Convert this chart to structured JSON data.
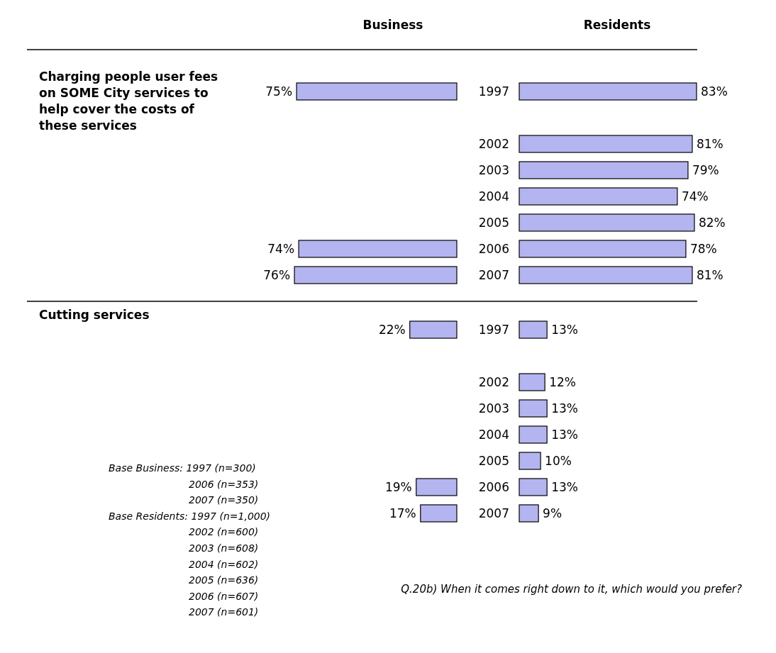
{
  "chart_data": [
    {
      "type": "bar",
      "orientation": "horizontal",
      "title": "Business",
      "ylabel": "Charging people user fees on SOME City services to help cover the costs of these services",
      "categories": [
        "1997",
        null,
        "2002",
        "2003",
        "2004",
        "2005",
        "2006",
        "2007"
      ],
      "values": [
        75,
        null,
        null,
        null,
        null,
        null,
        74,
        76
      ],
      "value_labels": [
        "75%",
        null,
        null,
        null,
        null,
        null,
        "74%",
        "76%"
      ],
      "color": "#b4b4f0",
      "tick_labels": false
    },
    {
      "type": "bar",
      "orientation": "horizontal",
      "title": "Residents",
      "categories": [
        "1997",
        null,
        "2002",
        "2003",
        "2004",
        "2005",
        "2006",
        "2007"
      ],
      "values": [
        83,
        null,
        81,
        79,
        74,
        82,
        78,
        81
      ],
      "value_labels": [
        "83%",
        null,
        "81%",
        "79%",
        "74%",
        "82%",
        "78%",
        "81%"
      ],
      "color": "#b4b4f0",
      "tick_labels": "y"
    },
    {
      "type": "bar",
      "orientation": "horizontal",
      "ylabel": "Cutting services",
      "categories": [
        "1997",
        null,
        "2002",
        "2003",
        "2004",
        "2005",
        "2006",
        "2007"
      ],
      "values": [
        22,
        null,
        null,
        null,
        null,
        null,
        19,
        17
      ],
      "value_labels": [
        "22%",
        null,
        null,
        null,
        null,
        null,
        "19%",
        "17%"
      ],
      "color": "#b4b4f0",
      "tick_labels": false,
      "annotations": [
        "Base Business: 1997 (n=300)",
        "2006 (n=353)",
        "2007 (n=350)",
        "Base Residents: 1997 (n=1,000)",
        "2002 (n=600)",
        "2003 (n=608)",
        "2004 (n=602)",
        "2005 (n=636)",
        "2006 (n=607)",
        "2007 (n=601)"
      ]
    },
    {
      "type": "bar",
      "orientation": "horizontal",
      "categories": [
        "1997",
        null,
        "2002",
        "2003",
        "2004",
        "2005",
        "2006",
        "2007"
      ],
      "values": [
        13,
        null,
        12,
        13,
        13,
        10,
        13,
        9
      ],
      "value_labels": [
        "13%",
        null,
        "12%",
        "13%",
        "13%",
        "10%",
        "13%",
        "9%"
      ],
      "color": "#b4b4f0",
      "tick_labels": "y",
      "annotations": [
        "Q.20b) When it comes right down to it, which would you prefer?"
      ]
    }
  ]
}
